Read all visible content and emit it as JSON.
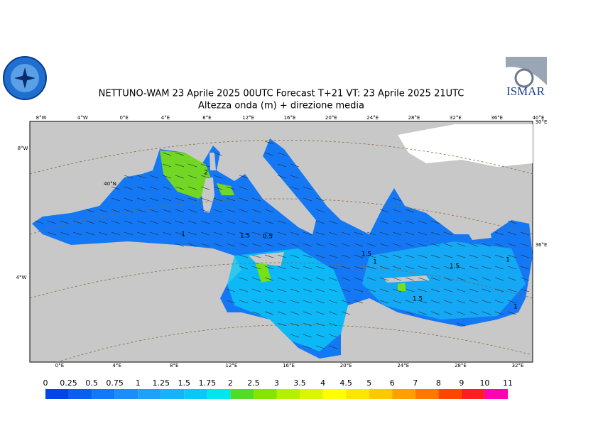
{
  "header": {
    "title": "NETTUNO-WAM  23   Aprile  2025 00UTC Forecast T+21 VT: 23   Aprile  2025 21UTC",
    "subtitle": "Altezza onda (m) + direzione media",
    "logo_text": "ISMAR"
  },
  "map": {
    "top_labels": [
      "8°W",
      "4°W",
      "0°E",
      "4°E",
      "8°E",
      "12°E",
      "16°E",
      "20°E",
      "24°E",
      "28°E",
      "32°E",
      "36°E",
      "40°E"
    ],
    "bottom_labels": [
      "0°E",
      "4°E",
      "8°E",
      "12°E",
      "16°E",
      "20°E",
      "24°E",
      "28°E",
      "32°E"
    ],
    "left_labels": [
      "8°W",
      "40°N",
      "4°W"
    ],
    "right_labels": [
      "30°E",
      "36°E"
    ],
    "contour_labels": [
      "2",
      "1",
      "1.5",
      "0.5",
      "1",
      "1",
      "1.5",
      "1.5",
      "1",
      "1.5"
    ]
  },
  "legend": {
    "ticks": [
      0,
      0.25,
      0.5,
      0.75,
      1,
      1.25,
      1.5,
      1.75,
      2,
      2.5,
      3,
      3.5,
      4,
      4.5,
      5,
      6,
      7,
      8,
      9,
      10,
      11
    ],
    "colors": [
      "#0046e6",
      "#0a5ff0",
      "#1478f5",
      "#1e8cf5",
      "#1ea0f5",
      "#14b4f5",
      "#0ac8f5",
      "#00e6f0",
      "#50dc28",
      "#82e600",
      "#b4f000",
      "#dcf500",
      "#ffff00",
      "#ffe600",
      "#ffc800",
      "#ffa000",
      "#ff7800",
      "#ff4600",
      "#ff1e1e",
      "#ff00b4"
    ]
  }
}
